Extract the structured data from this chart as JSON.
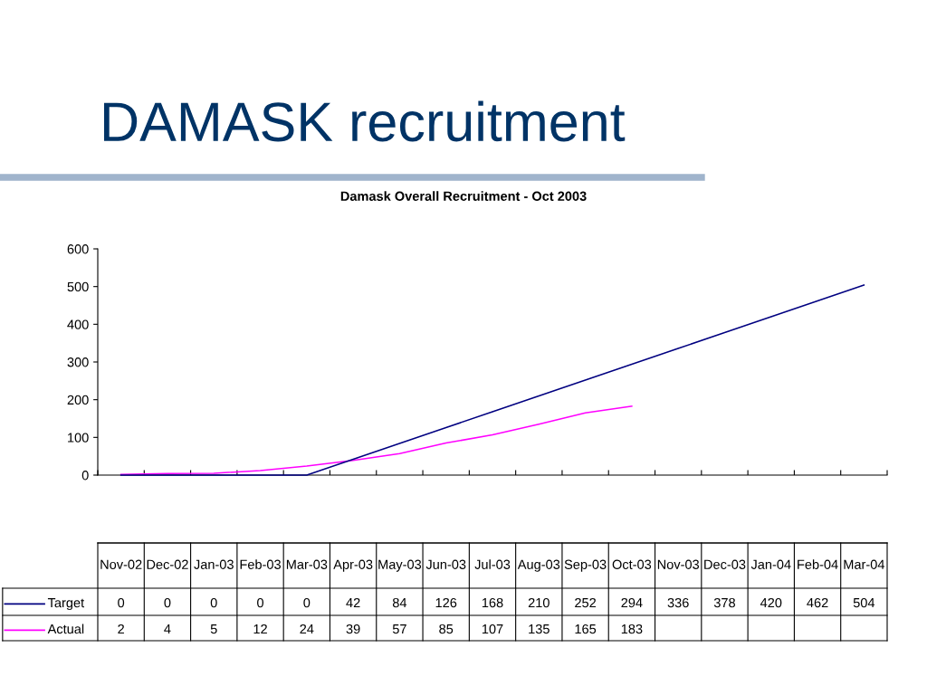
{
  "chart_data": {
    "type": "line",
    "title": "DAMASK recruitment",
    "subtitle": "Damask Overall Recruitment - Oct 2003",
    "categories": [
      "Nov-02",
      "Dec-02",
      "Jan-03",
      "Feb-03",
      "Mar-03",
      "Apr-03",
      "May-03",
      "Jun-03",
      "Jul-03",
      "Aug-03",
      "Sep-03",
      "Oct-03",
      "Nov-03",
      "Dec-03",
      "Jan-04",
      "Feb-04",
      "Mar-04"
    ],
    "series": [
      {
        "name": "Target",
        "color": "#000080",
        "values": [
          0,
          0,
          0,
          0,
          0,
          42,
          84,
          126,
          168,
          210,
          252,
          294,
          336,
          378,
          420,
          462,
          504
        ]
      },
      {
        "name": "Actual",
        "color": "#ff00ff",
        "values": [
          2,
          4,
          5,
          12,
          24,
          39,
          57,
          85,
          107,
          135,
          165,
          183,
          null,
          null,
          null,
          null,
          null
        ]
      }
    ],
    "ylim": [
      0,
      600
    ],
    "yticks": [
      0,
      100,
      200,
      300,
      400,
      500,
      600
    ],
    "grid": false,
    "legend": "bottom left",
    "data_labels": true,
    "tick_labels": "y",
    "marker": "none",
    "line_style": "solid"
  }
}
